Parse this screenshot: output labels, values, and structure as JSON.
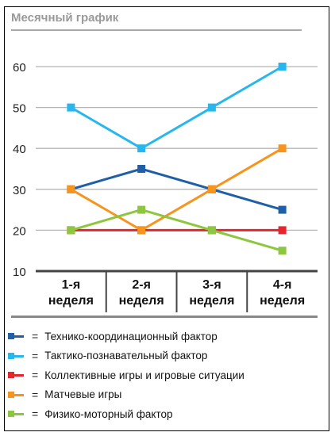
{
  "chart_data": {
    "type": "line",
    "title": "Месячный график",
    "categories": [
      "1-я\nнеделя",
      "2-я\nнеделя",
      "3-я\nнеделя",
      "4-я\nнеделя"
    ],
    "category_lines": [
      [
        "1-я",
        "неделя"
      ],
      [
        "2-я",
        "неделя"
      ],
      [
        "3-я",
        "неделя"
      ],
      [
        "4-я",
        "неделя"
      ]
    ],
    "ylim": [
      10,
      60
    ],
    "yticks": [
      10,
      20,
      30,
      40,
      50,
      60
    ],
    "grid": true,
    "legend_position": "bottom",
    "series": [
      {
        "name": "Технико-координационный фактор",
        "color": "#1f5fa8",
        "values": [
          30,
          35,
          30,
          25
        ]
      },
      {
        "name": "Тактико-познавательный фактор",
        "color": "#25b7ee",
        "values": [
          50,
          40,
          50,
          60
        ]
      },
      {
        "name": "Коллективные игры и игровые ситуации",
        "color": "#e5262d",
        "values": [
          20,
          20,
          20,
          20
        ]
      },
      {
        "name": "Матчевые игры",
        "color": "#f7941d",
        "values": [
          30,
          20,
          30,
          40
        ]
      },
      {
        "name": "Физико-моторный фактор",
        "color": "#8dc63f",
        "values": [
          20,
          25,
          20,
          15
        ]
      }
    ]
  },
  "legend": {
    "equals_sign": "="
  }
}
